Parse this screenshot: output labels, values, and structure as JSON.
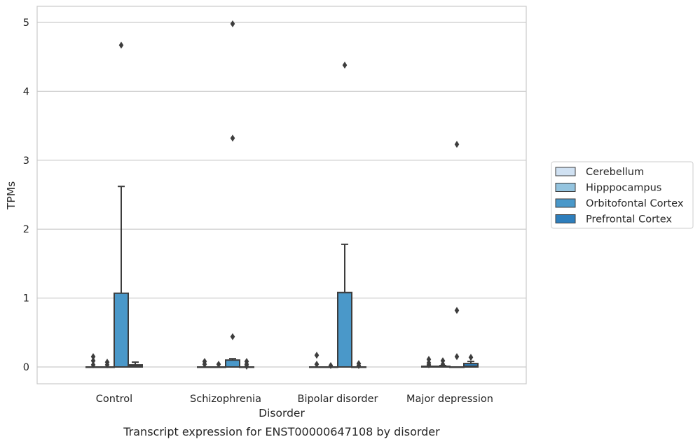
{
  "chart_data": {
    "type": "box",
    "caption": "Transcript expression for ENST00000647108 by disorder",
    "xlabel": "Disorder",
    "ylabel": "TPMs",
    "ylim": [
      -0.25,
      5.25
    ],
    "yticks": [
      0,
      1,
      2,
      3,
      4,
      5
    ],
    "grid": "horizontal",
    "legend_position": "right",
    "categories": [
      "Control",
      "Schizophrenia",
      "Bipolar disorder",
      "Major depression"
    ],
    "series": [
      {
        "name": "Cerebellum",
        "color": "#d0e1f2",
        "boxes": [
          {
            "q1": 0,
            "median": 0,
            "q3": 0,
            "whisker_low": 0,
            "whisker_high": 0,
            "outliers": [
              0.15,
              0.09,
              0.03
            ]
          },
          {
            "q1": 0,
            "median": 0,
            "q3": 0,
            "whisker_low": 0,
            "whisker_high": 0,
            "outliers": [
              0.08,
              0.04
            ]
          },
          {
            "q1": 0,
            "median": 0,
            "q3": 0,
            "whisker_low": 0,
            "whisker_high": 0,
            "outliers": [
              0.17,
              0.04
            ]
          },
          {
            "q1": 0,
            "median": 0,
            "q3": 0.01,
            "whisker_low": 0,
            "whisker_high": 0.01,
            "outliers": [
              0.11,
              0.06,
              0.03
            ]
          }
        ]
      },
      {
        "name": "Hipppocampus",
        "color": "#94c4df",
        "boxes": [
          {
            "q1": 0,
            "median": 0,
            "q3": 0,
            "whisker_low": 0,
            "whisker_high": 0,
            "outliers": [
              0.07,
              0.03
            ]
          },
          {
            "q1": 0,
            "median": 0,
            "q3": 0,
            "whisker_low": 0,
            "whisker_high": 0,
            "outliers": [
              0.04
            ]
          },
          {
            "q1": 0,
            "median": 0,
            "q3": 0,
            "whisker_low": 0,
            "whisker_high": 0,
            "outliers": [
              0.02
            ]
          },
          {
            "q1": 0,
            "median": 0,
            "q3": 0.01,
            "whisker_low": 0,
            "whisker_high": 0.02,
            "outliers": [
              0.09,
              0.04
            ]
          }
        ]
      },
      {
        "name": "Orbitofontal Cortex",
        "color": "#4a98c9",
        "boxes": [
          {
            "q1": 0,
            "median": 0,
            "q3": 1.07,
            "whisker_low": 0,
            "whisker_high": 2.62,
            "outliers": [
              4.67
            ]
          },
          {
            "q1": 0,
            "median": 0,
            "q3": 0.1,
            "whisker_low": 0,
            "whisker_high": 0.12,
            "outliers": [
              0.44,
              3.32,
              4.98
            ]
          },
          {
            "q1": 0,
            "median": 0,
            "q3": 1.08,
            "whisker_low": 0,
            "whisker_high": 1.78,
            "outliers": [
              4.38
            ]
          },
          {
            "q1": 0,
            "median": 0,
            "q3": 0,
            "whisker_low": 0,
            "whisker_high": 0,
            "outliers": [
              0.15,
              0.82,
              3.23
            ]
          }
        ]
      },
      {
        "name": "Prefrontal Cortex",
        "color": "#2e7ebc",
        "boxes": [
          {
            "q1": 0,
            "median": 0.01,
            "q3": 0.03,
            "whisker_low": 0,
            "whisker_high": 0.07,
            "outliers": []
          },
          {
            "q1": 0,
            "median": 0,
            "q3": 0,
            "whisker_low": 0,
            "whisker_high": 0,
            "outliers": [
              0.08,
              0.04,
              0.01
            ]
          },
          {
            "q1": 0,
            "median": 0,
            "q3": 0,
            "whisker_low": 0,
            "whisker_high": 0,
            "outliers": [
              0.05,
              0.02
            ]
          },
          {
            "q1": 0,
            "median": 0.01,
            "q3": 0.05,
            "whisker_low": 0,
            "whisker_high": 0.08,
            "outliers": [
              0.14
            ]
          }
        ]
      }
    ]
  }
}
